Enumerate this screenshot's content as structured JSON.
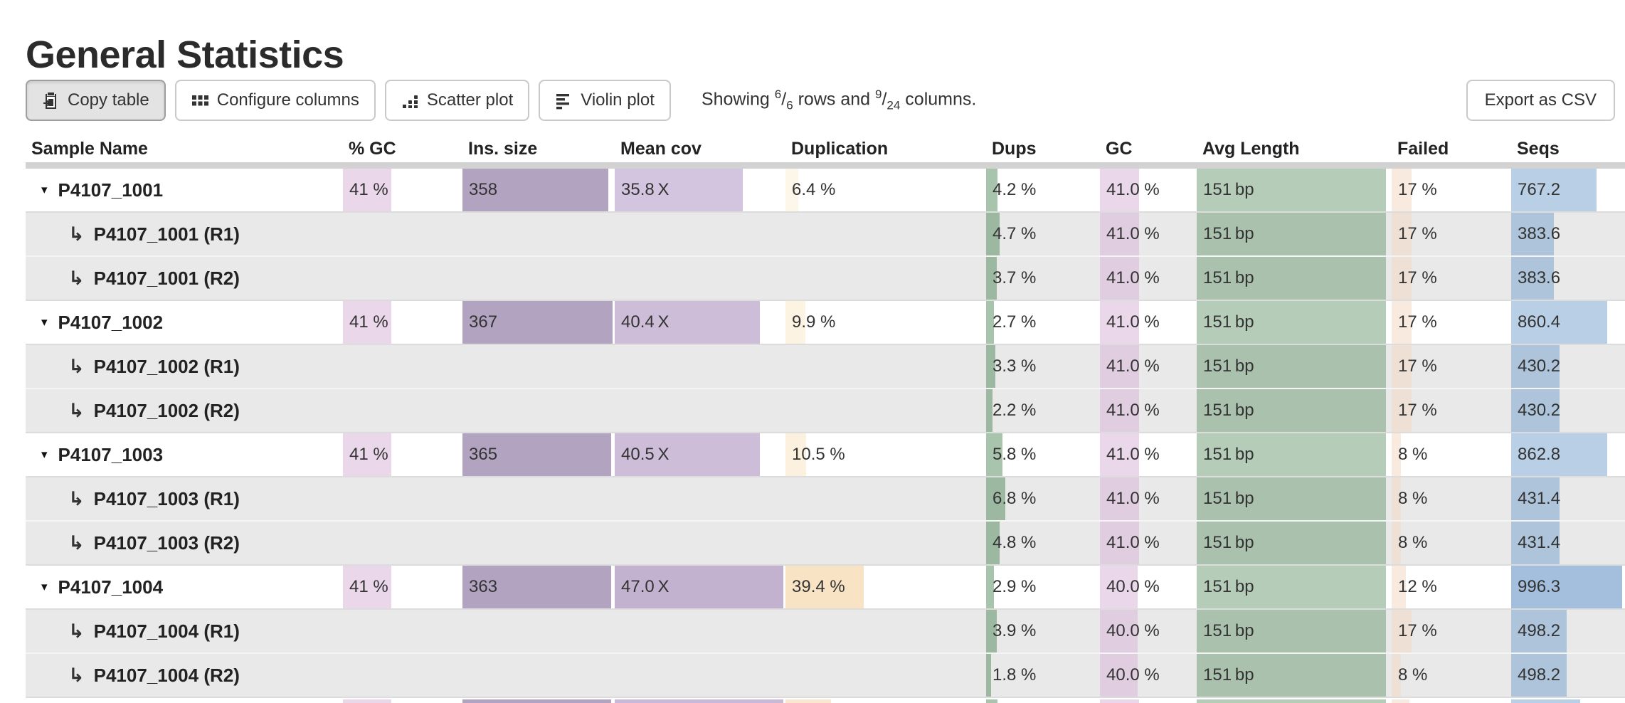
{
  "title": "General Statistics",
  "toolbar": {
    "copy_label": "Copy table",
    "configure_label": "Configure columns",
    "scatter_label": "Scatter plot",
    "violin_label": "Violin plot",
    "export_label": "Export as CSV",
    "showing": {
      "prefix": "Showing ",
      "rows_shown": "6",
      "rows_total": "6",
      "mid": " rows and ",
      "cols_shown": "9",
      "cols_total": "24",
      "suffix": " columns.",
      "slash": "/"
    }
  },
  "colors": {
    "gc_pink_bar": "rgba(216,183,216,0.55)",
    "ins_purple_bar": "#b2a4c1",
    "dups_green_bar": "rgba(62,124,74,0.45)",
    "avg_length_green_bar": "rgba(105,153,113,0.5)",
    "failed_peach_bar": "rgba(243,217,197,0.55)",
    "seqs_blue_bar": "rgba(113,159,203,0.5)",
    "sub_row_bg": "#e9e9e9",
    "header_divider": "#d2d2d2"
  },
  "table": {
    "columns": [
      {
        "key": "sample",
        "label": "Sample Name"
      },
      {
        "key": "pct_gc",
        "label": "% GC"
      },
      {
        "key": "ins",
        "label": "Ins. size"
      },
      {
        "key": "meancov",
        "label": "Mean cov"
      },
      {
        "key": "dup",
        "label": "Duplication"
      },
      {
        "key": "dups",
        "label": "Dups"
      },
      {
        "key": "gc",
        "label": "GC"
      },
      {
        "key": "avglen",
        "label": "Avg Length"
      },
      {
        "key": "failed",
        "label": "Failed"
      },
      {
        "key": "seqs",
        "label": "Seqs"
      }
    ],
    "rows": [
      {
        "type": "main",
        "label": "P4107_1001",
        "cells": {
          "pct_gc": {
            "text": "41 %",
            "bar": {
              "width_pct": 41,
              "color": "rgba(216,183,216,0.55)"
            }
          },
          "ins": {
            "text": "358",
            "bar": {
              "width_pct": 97,
              "color": "#b2a4c1"
            }
          },
          "meancov": {
            "text": "35.8 X",
            "bar": {
              "width_pct": 76,
              "color": "#d3c4df"
            }
          },
          "dup": {
            "text": "6.4 %",
            "bar": {
              "width_pct": 6.4,
              "color": "#fdf7ea"
            }
          },
          "dups": {
            "text": "4.2 %",
            "bar": {
              "width_pct": 10.5,
              "color": "rgba(62,124,74,0.45)"
            }
          },
          "gc": {
            "text": "41.0 %",
            "bar": {
              "width_pct": 41,
              "color": "rgba(216,183,216,0.55)"
            }
          },
          "avglen": {
            "text": "151 bp",
            "bar": {
              "width_pct": 98,
              "color": "rgba(105,153,113,0.5)"
            }
          },
          "failed": {
            "text": "17 %",
            "bar": {
              "width_pct": 17,
              "color": "rgba(243,217,197,0.55)"
            }
          },
          "seqs": {
            "text": "767.2",
            "bar": {
              "width_pct": 76.7,
              "color": "rgba(113,159,203,0.5)"
            }
          }
        }
      },
      {
        "type": "sub",
        "label": "P4107_1001 (R1)",
        "cells": {
          "dups": {
            "text": "4.7 %",
            "bar": {
              "width_pct": 11.8,
              "color": "rgba(62,124,74,0.45)"
            }
          },
          "gc": {
            "text": "41.0 %",
            "bar": {
              "width_pct": 41,
              "color": "rgba(216,183,216,0.55)"
            }
          },
          "avglen": {
            "text": "151 bp",
            "bar": {
              "width_pct": 98,
              "color": "rgba(105,153,113,0.5)"
            }
          },
          "failed": {
            "text": "17 %",
            "bar": {
              "width_pct": 17,
              "color": "rgba(243,217,197,0.55)"
            }
          },
          "seqs": {
            "text": "383.6",
            "bar": {
              "width_pct": 38.4,
              "color": "rgba(113,159,203,0.5)"
            }
          }
        }
      },
      {
        "type": "sub",
        "label": "P4107_1001 (R2)",
        "cells": {
          "dups": {
            "text": "3.7 %",
            "bar": {
              "width_pct": 9.3,
              "color": "rgba(62,124,74,0.45)"
            }
          },
          "gc": {
            "text": "41.0 %",
            "bar": {
              "width_pct": 41,
              "color": "rgba(216,183,216,0.55)"
            }
          },
          "avglen": {
            "text": "151 bp",
            "bar": {
              "width_pct": 98,
              "color": "rgba(105,153,113,0.5)"
            }
          },
          "failed": {
            "text": "17 %",
            "bar": {
              "width_pct": 17,
              "color": "rgba(243,217,197,0.55)"
            }
          },
          "seqs": {
            "text": "383.6",
            "bar": {
              "width_pct": 38.4,
              "color": "rgba(113,159,203,0.5)"
            }
          }
        }
      },
      {
        "type": "main",
        "label": "P4107_1002",
        "cells": {
          "pct_gc": {
            "text": "41 %",
            "bar": {
              "width_pct": 41,
              "color": "rgba(216,183,216,0.55)"
            }
          },
          "ins": {
            "text": "367",
            "bar": {
              "width_pct": 100,
              "color": "#b2a4c1"
            }
          },
          "meancov": {
            "text": "40.4 X",
            "bar": {
              "width_pct": 86,
              "color": "#cdbdd9"
            }
          },
          "dup": {
            "text": "9.9 %",
            "bar": {
              "width_pct": 9.9,
              "color": "#fcf3e2"
            }
          },
          "dups": {
            "text": "2.7 %",
            "bar": {
              "width_pct": 6.8,
              "color": "rgba(62,124,74,0.45)"
            }
          },
          "gc": {
            "text": "41.0 %",
            "bar": {
              "width_pct": 41,
              "color": "rgba(216,183,216,0.55)"
            }
          },
          "avglen": {
            "text": "151 bp",
            "bar": {
              "width_pct": 98,
              "color": "rgba(105,153,113,0.5)"
            }
          },
          "failed": {
            "text": "17 %",
            "bar": {
              "width_pct": 17,
              "color": "rgba(243,217,197,0.55)"
            }
          },
          "seqs": {
            "text": "860.4",
            "bar": {
              "width_pct": 86,
              "color": "rgba(113,159,203,0.5)"
            }
          }
        }
      },
      {
        "type": "sub",
        "label": "P4107_1002 (R1)",
        "cells": {
          "dups": {
            "text": "3.3 %",
            "bar": {
              "width_pct": 8.3,
              "color": "rgba(62,124,74,0.45)"
            }
          },
          "gc": {
            "text": "41.0 %",
            "bar": {
              "width_pct": 41,
              "color": "rgba(216,183,216,0.55)"
            }
          },
          "avglen": {
            "text": "151 bp",
            "bar": {
              "width_pct": 98,
              "color": "rgba(105,153,113,0.5)"
            }
          },
          "failed": {
            "text": "17 %",
            "bar": {
              "width_pct": 17,
              "color": "rgba(243,217,197,0.55)"
            }
          },
          "seqs": {
            "text": "430.2",
            "bar": {
              "width_pct": 43,
              "color": "rgba(113,159,203,0.5)"
            }
          }
        }
      },
      {
        "type": "sub",
        "label": "P4107_1002 (R2)",
        "cells": {
          "dups": {
            "text": "2.2 %",
            "bar": {
              "width_pct": 5.5,
              "color": "rgba(62,124,74,0.45)"
            }
          },
          "gc": {
            "text": "41.0 %",
            "bar": {
              "width_pct": 41,
              "color": "rgba(216,183,216,0.55)"
            }
          },
          "avglen": {
            "text": "151 bp",
            "bar": {
              "width_pct": 98,
              "color": "rgba(105,153,113,0.5)"
            }
          },
          "failed": {
            "text": "17 %",
            "bar": {
              "width_pct": 17,
              "color": "rgba(243,217,197,0.55)"
            }
          },
          "seqs": {
            "text": "430.2",
            "bar": {
              "width_pct": 43,
              "color": "rgba(113,159,203,0.5)"
            }
          }
        }
      },
      {
        "type": "main",
        "label": "P4107_1003",
        "cells": {
          "pct_gc": {
            "text": "41 %",
            "bar": {
              "width_pct": 41,
              "color": "rgba(216,183,216,0.55)"
            }
          },
          "ins": {
            "text": "365",
            "bar": {
              "width_pct": 99,
              "color": "#b2a4c1"
            }
          },
          "meancov": {
            "text": "40.5 X",
            "bar": {
              "width_pct": 86,
              "color": "#cdbdd9"
            }
          },
          "dup": {
            "text": "10.5 %",
            "bar": {
              "width_pct": 10.5,
              "color": "#fcf1df"
            }
          },
          "dups": {
            "text": "5.8 %",
            "bar": {
              "width_pct": 14.5,
              "color": "rgba(62,124,74,0.45)"
            }
          },
          "gc": {
            "text": "41.0 %",
            "bar": {
              "width_pct": 41,
              "color": "rgba(216,183,216,0.55)"
            }
          },
          "avglen": {
            "text": "151 bp",
            "bar": {
              "width_pct": 98,
              "color": "rgba(105,153,113,0.5)"
            }
          },
          "failed": {
            "text": "8 %",
            "bar": {
              "width_pct": 8,
              "color": "rgba(243,217,197,0.55)"
            }
          },
          "seqs": {
            "text": "862.8",
            "bar": {
              "width_pct": 86.3,
              "color": "rgba(113,159,203,0.5)"
            }
          }
        }
      },
      {
        "type": "sub",
        "label": "P4107_1003 (R1)",
        "cells": {
          "dups": {
            "text": "6.8 %",
            "bar": {
              "width_pct": 17,
              "color": "rgba(62,124,74,0.45)"
            }
          },
          "gc": {
            "text": "41.0 %",
            "bar": {
              "width_pct": 41,
              "color": "rgba(216,183,216,0.55)"
            }
          },
          "avglen": {
            "text": "151 bp",
            "bar": {
              "width_pct": 98,
              "color": "rgba(105,153,113,0.5)"
            }
          },
          "failed": {
            "text": "8 %",
            "bar": {
              "width_pct": 8,
              "color": "rgba(243,217,197,0.55)"
            }
          },
          "seqs": {
            "text": "431.4",
            "bar": {
              "width_pct": 43.1,
              "color": "rgba(113,159,203,0.5)"
            }
          }
        }
      },
      {
        "type": "sub",
        "label": "P4107_1003 (R2)",
        "cells": {
          "dups": {
            "text": "4.8 %",
            "bar": {
              "width_pct": 12,
              "color": "rgba(62,124,74,0.45)"
            }
          },
          "gc": {
            "text": "41.0 %",
            "bar": {
              "width_pct": 41,
              "color": "rgba(216,183,216,0.55)"
            }
          },
          "avglen": {
            "text": "151 bp",
            "bar": {
              "width_pct": 98,
              "color": "rgba(105,153,113,0.5)"
            }
          },
          "failed": {
            "text": "8 %",
            "bar": {
              "width_pct": 8,
              "color": "rgba(243,217,197,0.55)"
            }
          },
          "seqs": {
            "text": "431.4",
            "bar": {
              "width_pct": 43.1,
              "color": "rgba(113,159,203,0.5)"
            }
          }
        }
      },
      {
        "type": "main",
        "label": "P4107_1004",
        "cells": {
          "pct_gc": {
            "text": "41 %",
            "bar": {
              "width_pct": 41,
              "color": "rgba(216,183,216,0.55)"
            }
          },
          "ins": {
            "text": "363",
            "bar": {
              "width_pct": 99,
              "color": "#b2a4c1"
            }
          },
          "meancov": {
            "text": "47.0 X",
            "bar": {
              "width_pct": 100,
              "color": "#c2b1cf"
            }
          },
          "dup": {
            "text": "39.4 %",
            "bar": {
              "width_pct": 39.4,
              "color": "#f8e3c5"
            }
          },
          "dups": {
            "text": "2.9 %",
            "bar": {
              "width_pct": 7.3,
              "color": "rgba(62,124,74,0.45)"
            }
          },
          "gc": {
            "text": "40.0 %",
            "bar": {
              "width_pct": 40,
              "color": "rgba(216,183,216,0.55)"
            }
          },
          "avglen": {
            "text": "151 bp",
            "bar": {
              "width_pct": 98,
              "color": "rgba(105,153,113,0.5)"
            }
          },
          "failed": {
            "text": "12 %",
            "bar": {
              "width_pct": 12,
              "color": "rgba(243,217,197,0.55)"
            }
          },
          "seqs": {
            "text": "996.3",
            "bar": {
              "width_pct": 99.6,
              "color": "rgba(96,145,196,0.58)"
            }
          }
        }
      },
      {
        "type": "sub",
        "label": "P4107_1004 (R1)",
        "cells": {
          "dups": {
            "text": "3.9 %",
            "bar": {
              "width_pct": 9.8,
              "color": "rgba(62,124,74,0.45)"
            }
          },
          "gc": {
            "text": "40.0 %",
            "bar": {
              "width_pct": 40,
              "color": "rgba(216,183,216,0.55)"
            }
          },
          "avglen": {
            "text": "151 bp",
            "bar": {
              "width_pct": 98,
              "color": "rgba(105,153,113,0.5)"
            }
          },
          "failed": {
            "text": "17 %",
            "bar": {
              "width_pct": 17,
              "color": "rgba(243,217,197,0.55)"
            }
          },
          "seqs": {
            "text": "498.2",
            "bar": {
              "width_pct": 49.8,
              "color": "rgba(113,159,203,0.5)"
            }
          }
        }
      },
      {
        "type": "sub",
        "label": "P4107_1004 (R2)",
        "cells": {
          "dups": {
            "text": "1.8 %",
            "bar": {
              "width_pct": 4.5,
              "color": "rgba(62,124,74,0.45)"
            }
          },
          "gc": {
            "text": "40.0 %",
            "bar": {
              "width_pct": 40,
              "color": "rgba(216,183,216,0.55)"
            }
          },
          "avglen": {
            "text": "151 bp",
            "bar": {
              "width_pct": 98,
              "color": "rgba(105,153,113,0.5)"
            }
          },
          "failed": {
            "text": "8 %",
            "bar": {
              "width_pct": 8,
              "color": "rgba(243,217,197,0.55)"
            }
          },
          "seqs": {
            "text": "498.2",
            "bar": {
              "width_pct": 49.8,
              "color": "rgba(113,159,203,0.5)"
            }
          }
        }
      }
    ],
    "partial_row": {
      "cells": {
        "pct_gc": {
          "bar": {
            "width_pct": 41,
            "color": "rgba(216,183,216,0.55)"
          }
        },
        "ins": {
          "bar": {
            "width_pct": 99,
            "color": "#b2a4c1"
          }
        },
        "meancov": {
          "bar": {
            "width_pct": 100,
            "color": "#c9b9d6"
          }
        },
        "dup": {
          "bar": {
            "width_pct": 23,
            "color": "#f9e8cf"
          }
        },
        "dups": {
          "bar": {
            "width_pct": 10,
            "color": "rgba(62,124,74,0.45)"
          }
        },
        "gc": {
          "bar": {
            "width_pct": 41,
            "color": "rgba(216,183,216,0.55)"
          }
        },
        "avglen": {
          "bar": {
            "width_pct": 98,
            "color": "rgba(105,153,113,0.5)"
          }
        },
        "failed": {
          "bar": {
            "width_pct": 15,
            "color": "rgba(243,217,197,0.55)"
          }
        },
        "seqs": {
          "bar": {
            "width_pct": 62,
            "color": "rgba(113,159,203,0.5)"
          }
        }
      }
    }
  }
}
